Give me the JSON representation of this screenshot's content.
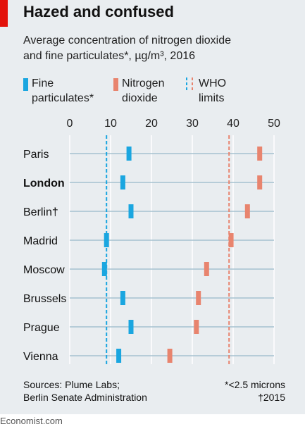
{
  "header": {
    "title": "Hazed and confused",
    "subtitle_line1": "Average concentration of nitrogen dioxide",
    "subtitle_line2": "and fine particulates*, µg/m³, 2016"
  },
  "legend": {
    "fine": [
      "Fine",
      "particulates*"
    ],
    "no2": [
      "Nitrogen",
      "dioxide"
    ],
    "who": [
      "WHO",
      "limits"
    ]
  },
  "colors": {
    "fine": "#1aa6e0",
    "no2": "#e8846e",
    "background": "#e9edf0",
    "grid": "#a6c1cf",
    "brand": "#e3120b"
  },
  "chart_data": {
    "type": "scatter",
    "title": "Hazed and confused",
    "xlim": [
      0,
      50
    ],
    "xticks": [
      0,
      10,
      20,
      30,
      40,
      50
    ],
    "categories": [
      "Paris",
      "London",
      "Berlin†",
      "Madrid",
      "Moscow",
      "Brussels",
      "Prague",
      "Vienna"
    ],
    "highlight": "London",
    "series": [
      {
        "name": "Fine particulates*",
        "values": [
          14.5,
          13,
          15,
          9,
          8.5,
          13,
          15,
          12
        ]
      },
      {
        "name": "Nitrogen dioxide",
        "values": [
          46.5,
          46.5,
          43.5,
          39.5,
          33.5,
          31.5,
          31,
          24.5
        ]
      }
    ],
    "reference_lines": [
      {
        "name": "WHO limits – fine particulates",
        "value": 9,
        "series": "Fine particulates*"
      },
      {
        "name": "WHO limits – nitrogen dioxide",
        "value": 39,
        "series": "Nitrogen dioxide"
      }
    ]
  },
  "footer": {
    "sources_line1": "Sources: Plume Labs;",
    "sources_line2": "Berlin Senate Administration",
    "note1": "*<2.5 microns",
    "note2": "†2015"
  },
  "credit": "Economist.com"
}
